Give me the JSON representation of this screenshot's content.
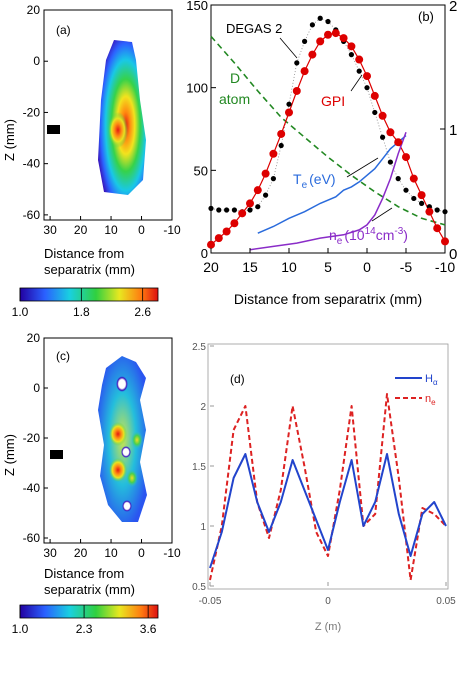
{
  "chart_data": [
    {
      "type": "heatmap",
      "panel_label": "(a)",
      "ylabel": "Z (mm)",
      "xlabel_lines": [
        "Distance from",
        "separatrix   (mm)"
      ],
      "xlim": [
        32,
        -10
      ],
      "ylim": [
        -62,
        20
      ],
      "xticks": [
        30,
        20,
        10,
        0,
        -10
      ],
      "xtick_labels": [
        "30",
        "20",
        "10",
        "0",
        "-10"
      ],
      "yticks": [
        20,
        0,
        -20,
        -40,
        -60
      ],
      "ytick_labels": [
        "20",
        "0",
        "-20",
        "-40",
        "-60"
      ],
      "colorbar": {
        "ticks": [
          1.0,
          1.8,
          2.6
        ],
        "tick_labels": [
          "1.0",
          "1.8",
          "2.6"
        ],
        "range": [
          1.0,
          2.8
        ]
      },
      "colors": {
        "background": "#ffffff",
        "marker": "#000000"
      }
    },
    {
      "type": "line",
      "panel_label": "(b)",
      "xlabel": "Distance from separatrix (mm)",
      "xlim": [
        20,
        -10
      ],
      "ylim_left": [
        0,
        150
      ],
      "ylim_right": [
        0,
        2
      ],
      "xticks": [
        20,
        15,
        10,
        5,
        0,
        -5,
        -10
      ],
      "xtick_labels": [
        "20",
        "15",
        "10",
        "5",
        "0",
        "-5",
        "-10"
      ],
      "yticks_left": [
        0,
        50,
        100,
        150
      ],
      "ytick_labels_left": [
        "0",
        "50",
        "100",
        "150"
      ],
      "yticks_right": [
        0,
        1,
        2
      ],
      "ytick_labels_right": [
        "0",
        "1",
        "2"
      ],
      "annotations": [
        "DEGAS 2",
        "D",
        "atom",
        "GPI",
        "T",
        "e",
        "(eV)",
        "n",
        "e",
        "(10",
        "14",
        "cm",
        "-3",
        ")"
      ],
      "series": [
        {
          "name": "DEGAS 2",
          "color": "#000000",
          "x": [
            20,
            19,
            18,
            17,
            16,
            15,
            14,
            13,
            12,
            11,
            10,
            9,
            8,
            7,
            6,
            5,
            4,
            3,
            2,
            1,
            0,
            -1,
            -2,
            -3,
            -4,
            -5,
            -6,
            -7,
            -8,
            -9,
            -10
          ],
          "y": [
            27,
            26,
            26,
            26,
            25,
            26,
            28,
            35,
            45,
            65,
            90,
            115,
            128,
            138,
            142,
            140,
            135,
            128,
            120,
            110,
            100,
            85,
            70,
            55,
            45,
            38,
            33,
            30,
            28,
            26,
            25
          ]
        },
        {
          "name": "GPI",
          "color": "#dd0000",
          "x": [
            20,
            19,
            18,
            17,
            16,
            15,
            14,
            13,
            12,
            11,
            10,
            9,
            8,
            7,
            6,
            5,
            4,
            3,
            2,
            1,
            0,
            -1,
            -2,
            -3,
            -4,
            -5,
            -6,
            -7,
            -8,
            -9,
            -10
          ],
          "y": [
            5,
            9,
            13,
            18,
            24,
            30,
            38,
            48,
            60,
            72,
            85,
            98,
            110,
            120,
            128,
            132,
            133,
            130,
            125,
            117,
            107,
            95,
            83,
            73,
            67,
            58,
            45,
            35,
            25,
            15,
            7
          ]
        },
        {
          "name": "D atom",
          "color": "#228822",
          "x": [
            20,
            17,
            14,
            11,
            8,
            5,
            2,
            -1,
            -4,
            -7,
            -10
          ],
          "y": [
            131,
            115,
            98,
            82,
            70,
            58,
            47,
            37,
            28,
            21,
            17
          ]
        },
        {
          "name": "T_e (eV)",
          "color": "#2a6bdc",
          "x": [
            14,
            12,
            10,
            8,
            6,
            4,
            3,
            2,
            1,
            0,
            -1,
            -2,
            -3,
            -4,
            -5
          ],
          "y": [
            12,
            16,
            21,
            25,
            30,
            34,
            38,
            40,
            43,
            47,
            51,
            57,
            63,
            67,
            71
          ]
        },
        {
          "name": "n_e (10^14 cm^-3)",
          "color": "#8a2cc8",
          "x": [
            15,
            12,
            9,
            6,
            3,
            1,
            0,
            -1,
            -2,
            -3,
            -4,
            -5
          ],
          "y": [
            2,
            4,
            6,
            9,
            11,
            14,
            17,
            23,
            33,
            45,
            60,
            73
          ]
        }
      ]
    },
    {
      "type": "heatmap",
      "panel_label": "(c)",
      "ylabel": "Z (mm)",
      "xlabel_lines": [
        "Distance from",
        "separatrix   (mm)"
      ],
      "xlim": [
        32,
        -10
      ],
      "ylim": [
        -62,
        20
      ],
      "xticks": [
        30,
        20,
        10,
        0,
        -10
      ],
      "xtick_labels": [
        "30",
        "20",
        "10",
        "0",
        "-10"
      ],
      "yticks": [
        20,
        0,
        -20,
        -40,
        -60
      ],
      "ytick_labels": [
        "20",
        "0",
        "-20",
        "-40",
        "-60"
      ],
      "colorbar": {
        "ticks": [
          1.0,
          2.3,
          3.6
        ],
        "tick_labels": [
          "1.0",
          "2.3",
          "3.6"
        ],
        "range": [
          1.0,
          3.8
        ]
      },
      "colors": {
        "background": "#ffffff",
        "marker": "#000000"
      }
    },
    {
      "type": "line",
      "panel_label": "(d)",
      "xlabel": "Z (m)",
      "xlim": [
        -0.05,
        0.05
      ],
      "ylim": [
        0.5,
        2.5
      ],
      "xticks": [
        -0.05,
        0,
        0.05
      ],
      "xtick_labels": [
        "-0.05",
        "0",
        "0.05"
      ],
      "yticks": [
        0.5,
        1,
        1.5,
        2,
        2.5
      ],
      "ytick_labels": [
        "0.5",
        "1",
        "1.5",
        "2",
        "2.5"
      ],
      "series": [
        {
          "name": "H",
          "subscript": "α",
          "color": "#2244cc",
          "dash": "",
          "x": [
            -0.05,
            -0.045,
            -0.04,
            -0.035,
            -0.03,
            -0.025,
            -0.02,
            -0.015,
            -0.01,
            -0.005,
            0,
            0.005,
            0.01,
            0.015,
            0.02,
            0.025,
            0.03,
            0.035,
            0.04,
            0.045,
            0.05
          ],
          "y": [
            0.65,
            0.95,
            1.4,
            1.6,
            1.2,
            0.95,
            1.2,
            1.55,
            1.3,
            1.05,
            0.8,
            1.2,
            1.55,
            1.0,
            1.2,
            1.6,
            1.1,
            0.75,
            1.1,
            1.2,
            1.0
          ]
        },
        {
          "name": "n",
          "subscript": "e",
          "color": "#dd2222",
          "dash": "5,3",
          "x": [
            -0.05,
            -0.045,
            -0.04,
            -0.035,
            -0.03,
            -0.025,
            -0.02,
            -0.015,
            -0.01,
            -0.005,
            0,
            0.005,
            0.01,
            0.015,
            0.02,
            0.025,
            0.03,
            0.035,
            0.04,
            0.045,
            0.05
          ],
          "y": [
            0.55,
            1.0,
            1.8,
            2.0,
            1.2,
            0.9,
            1.3,
            2.0,
            1.5,
            0.95,
            0.75,
            1.3,
            2.0,
            1.0,
            1.1,
            2.1,
            1.4,
            0.55,
            1.15,
            1.1,
            1.0
          ]
        }
      ]
    }
  ]
}
